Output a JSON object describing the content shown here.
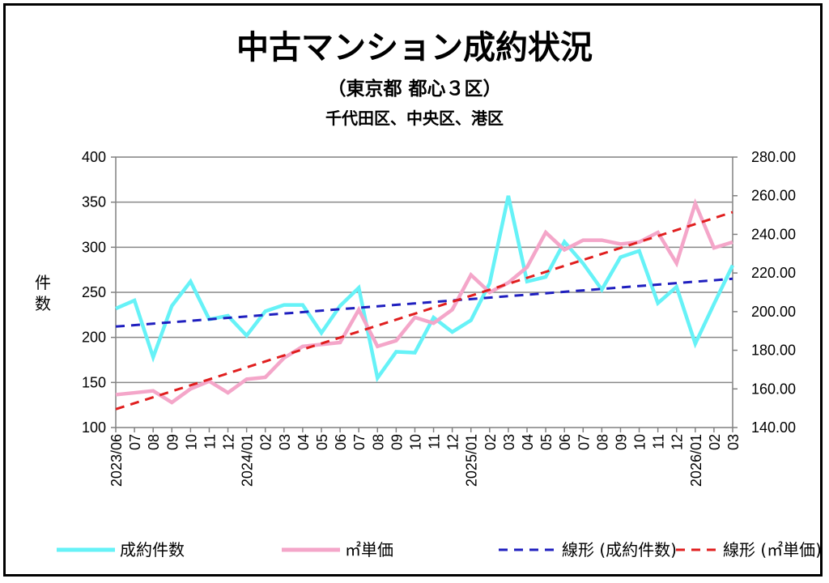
{
  "header": {
    "title": "中古マンション成約状況",
    "subtitle": "（東京都 都心３区）",
    "subtitle2": "千代田区、中央区、港区"
  },
  "chart_data": {
    "type": "line",
    "ylabel": "件数",
    "ylabel_chars": [
      "件",
      "数"
    ],
    "ylim": [
      100,
      400
    ],
    "y2lim": [
      140,
      280
    ],
    "y_ticks": [
      "400",
      "350",
      "300",
      "250",
      "200",
      "150",
      "100"
    ],
    "y2_ticks": [
      "280.00",
      "260.00",
      "240.00",
      "220.00",
      "200.00",
      "180.00",
      "160.00",
      "140.00"
    ],
    "x_labels": [
      "2023/06",
      "07",
      "08",
      "09",
      "10",
      "11",
      "12",
      "2024/01",
      "02",
      "03",
      "04",
      "05",
      "06",
      "07",
      "08",
      "09",
      "10",
      "11",
      "12",
      "2025/01",
      "02",
      "03",
      "04",
      "05",
      "06",
      "07",
      "08",
      "09",
      "10",
      "11",
      "12",
      "2026/01",
      "02",
      "03"
    ],
    "grid": true,
    "legend_position": "bottom",
    "series": [
      {
        "name": "成約件数",
        "axis": "left",
        "color": "#66f2f7",
        "style": "solid",
        "values": [
          232,
          241,
          178,
          235,
          262,
          220,
          224,
          202,
          229,
          236,
          236,
          205,
          235,
          255,
          155,
          184,
          183,
          222,
          206,
          219,
          260,
          357,
          262,
          267,
          306,
          282,
          253,
          289,
          296,
          238,
          256,
          193,
          237,
          280
        ]
      },
      {
        "name": "㎡単価",
        "axis": "right",
        "color": "#f4a6c9",
        "style": "solid",
        "values": [
          157,
          158,
          159,
          153,
          160,
          164,
          158,
          165,
          166,
          176,
          182,
          183,
          184,
          201,
          182,
          185,
          197,
          194,
          201,
          219,
          210,
          215,
          223,
          241,
          232,
          237,
          237,
          235,
          236,
          241,
          225,
          256,
          233,
          236
        ]
      },
      {
        "name": "線形 (成約件数)",
        "axis": "left",
        "color": "#1f1fbf",
        "style": "dashed",
        "values": [
          212,
          265
        ]
      },
      {
        "name": "線形 (㎡単価)",
        "axis": "right",
        "color": "#e01e1e",
        "style": "dashed",
        "values": [
          149.5,
          251.5
        ]
      }
    ]
  }
}
